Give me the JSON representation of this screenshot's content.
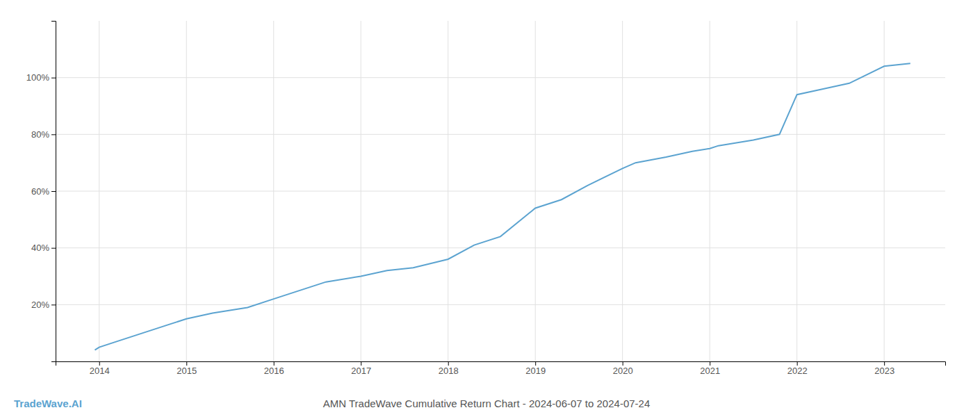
{
  "chart_data": {
    "type": "line",
    "title": "AMN TradeWave Cumulative Return Chart - 2024-06-07 to 2024-07-24",
    "annotations": [
      "TradeWave.AI"
    ],
    "color": "#5ba3d0",
    "x": [
      2013.95,
      2014.0,
      2014.2,
      2014.5,
      2014.8,
      2015.0,
      2015.3,
      2015.7,
      2016.0,
      2016.3,
      2016.6,
      2017.0,
      2017.3,
      2017.6,
      2018.0,
      2018.3,
      2018.6,
      2019.0,
      2019.3,
      2019.6,
      2020.0,
      2020.15,
      2020.5,
      2020.8,
      2021.0,
      2021.1,
      2021.5,
      2021.8,
      2022.0,
      2022.3,
      2022.6,
      2023.0,
      2023.3
    ],
    "values": [
      4,
      5,
      7,
      10,
      13,
      15,
      17,
      19,
      22,
      25,
      28,
      30,
      32,
      33,
      36,
      41,
      44,
      54,
      57,
      62,
      68,
      70,
      72,
      74,
      75,
      76,
      78,
      80,
      94,
      96,
      98,
      104,
      105
    ],
    "xlim": [
      2013.5,
      2023.7
    ],
    "ylim": [
      0,
      120
    ],
    "xticks": [
      2014,
      2015,
      2016,
      2017,
      2018,
      2019,
      2020,
      2021,
      2022,
      2023
    ],
    "yticks": [
      {
        "value": 20,
        "label": "20%"
      },
      {
        "value": 40,
        "label": "40%"
      },
      {
        "value": 60,
        "label": "60%"
      },
      {
        "value": 80,
        "label": "80%"
      },
      {
        "value": 100,
        "label": "100%"
      }
    ],
    "grid": true
  }
}
